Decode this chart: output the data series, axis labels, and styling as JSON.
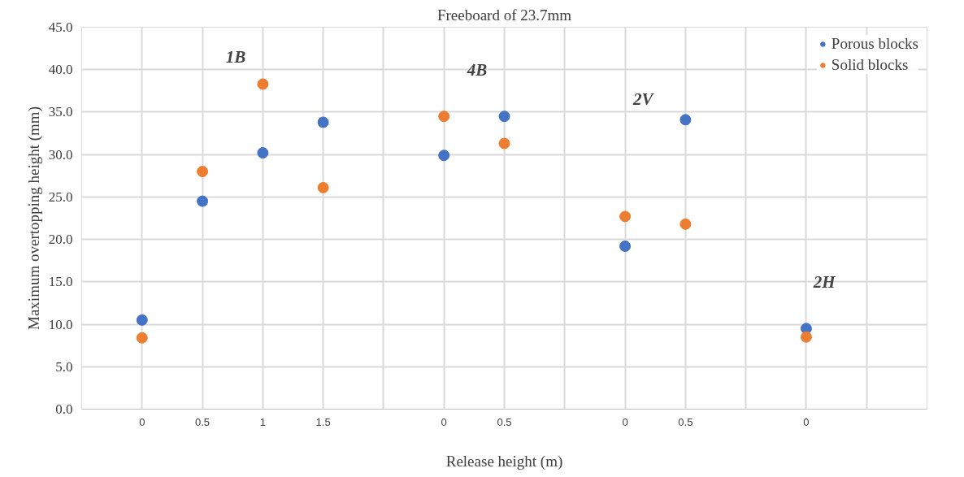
{
  "chart_data": {
    "type": "scatter",
    "title": "Freeboard of 23.7mm",
    "xlabel": "Release height (m)",
    "ylabel": "Maximum overtopping height (mm)",
    "categories": [
      null,
      "0",
      "0.5",
      "1",
      "1.5",
      null,
      "0",
      "0.5",
      null,
      "0",
      "0.5",
      null,
      "0",
      null,
      null
    ],
    "series": [
      {
        "name": "Porous blocks",
        "color": "#4472c4",
        "values": [
          null,
          10.5,
          24.5,
          30.2,
          33.8,
          null,
          29.9,
          34.5,
          null,
          19.2,
          34.1,
          null,
          9.5,
          null,
          null
        ]
      },
      {
        "name": "Solid blocks",
        "color": "#ed7d31",
        "values": [
          null,
          8.4,
          28.0,
          38.3,
          26.1,
          null,
          34.5,
          31.3,
          null,
          22.7,
          21.8,
          null,
          8.5,
          null,
          null
        ]
      }
    ],
    "ylim": [
      0,
      45
    ],
    "yticks": [
      {
        "value": 0,
        "label": "0.0"
      },
      {
        "value": 5,
        "label": "5.0"
      },
      {
        "value": 10,
        "label": "10.0"
      },
      {
        "value": 15,
        "label": "15.0"
      },
      {
        "value": 20,
        "label": "20.0"
      },
      {
        "value": 25,
        "label": "25.0"
      },
      {
        "value": 30,
        "label": "30.0"
      },
      {
        "value": 35,
        "label": "35.0"
      },
      {
        "value": 40,
        "label": "40.0"
      },
      {
        "value": 45,
        "label": "45.0"
      }
    ],
    "annotations": [
      "1B",
      "4B",
      "2V",
      "2H"
    ],
    "grid": true,
    "legend": "top right",
    "marker": "circle"
  }
}
